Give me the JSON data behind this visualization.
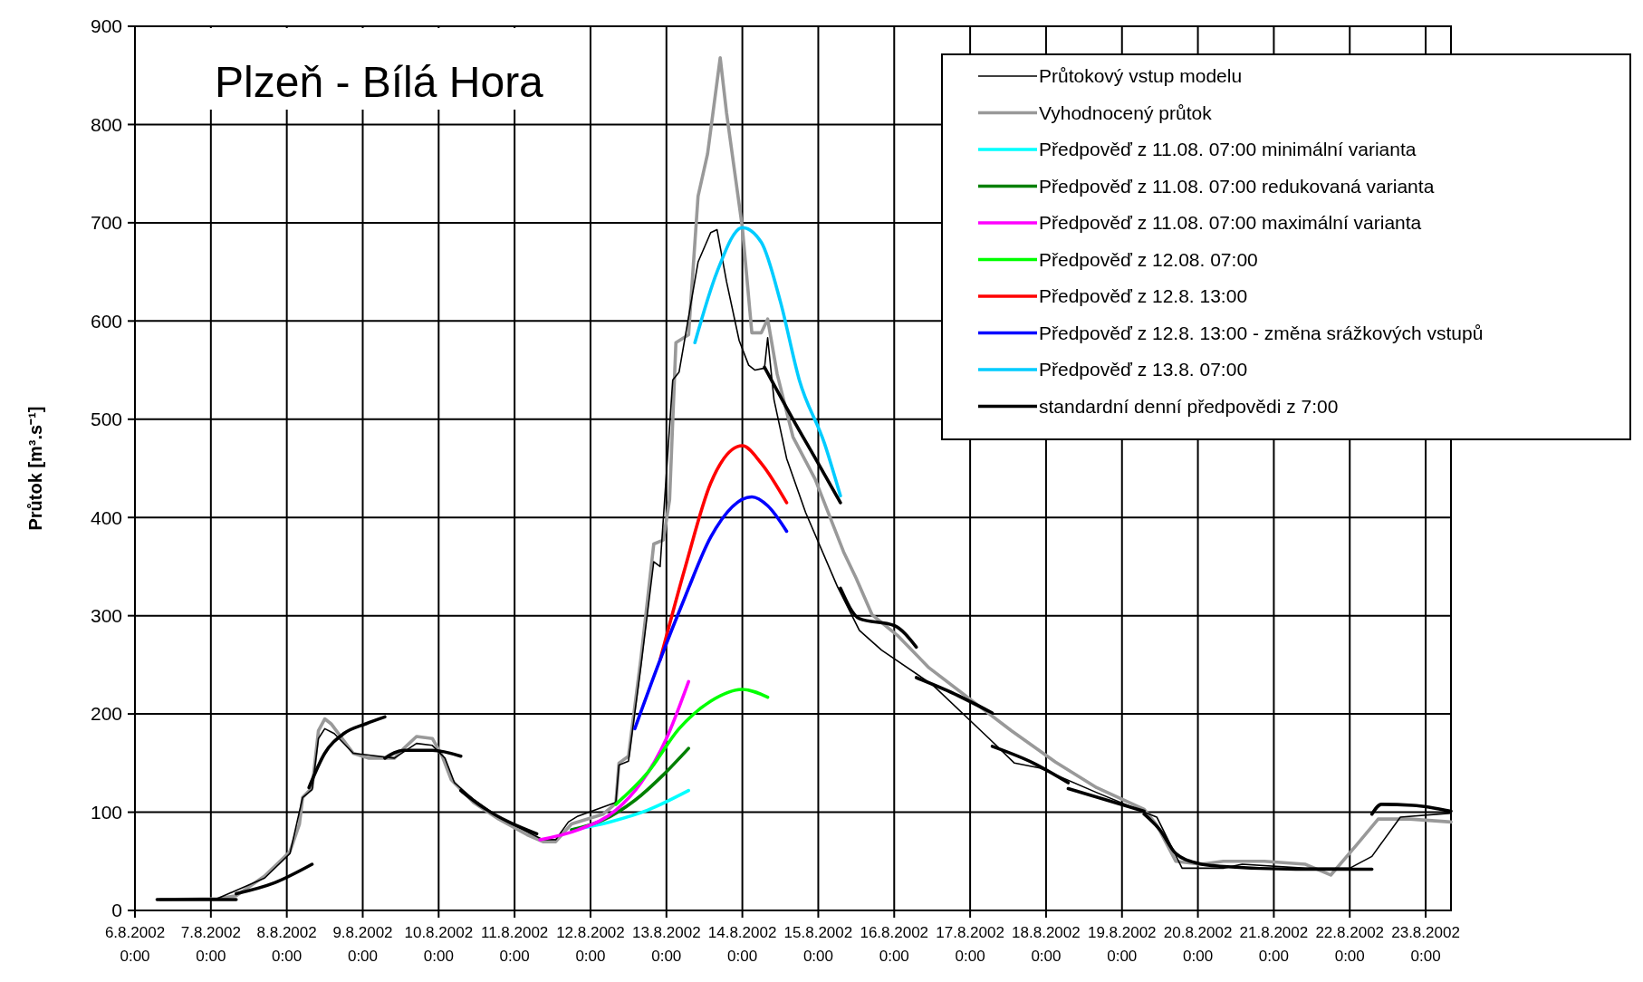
{
  "chart_data": {
    "type": "line",
    "title": "Plzeň - Bílá Hora",
    "ylabel": "Průtok [m³.s⁻¹]",
    "legend": "top right",
    "grid": true,
    "xlim": [
      "2002-08-06T00:00",
      "2002-08-23T08:00"
    ],
    "xticks": [
      {
        "value": "2002-08-06T00:00",
        "label": "6.8.2002 0:00"
      },
      {
        "value": "2002-08-07T00:00",
        "label": "7.8.2002 0:00"
      },
      {
        "value": "2002-08-08T00:00",
        "label": "8.8.2002 0:00"
      },
      {
        "value": "2002-08-09T00:00",
        "label": "9.8.2002 0:00"
      },
      {
        "value": "2002-08-10T00:00",
        "label": "10.8.2002 0:00"
      },
      {
        "value": "2002-08-11T00:00",
        "label": "11.8.2002 0:00"
      },
      {
        "value": "2002-08-12T00:00",
        "label": "12.8.2002 0:00"
      },
      {
        "value": "2002-08-13T00:00",
        "label": "13.8.2002 0:00"
      },
      {
        "value": "2002-08-14T00:00",
        "label": "14.8.2002 0:00"
      },
      {
        "value": "2002-08-15T00:00",
        "label": "15.8.2002 0:00"
      },
      {
        "value": "2002-08-16T00:00",
        "label": "16.8.2002 0:00"
      },
      {
        "value": "2002-08-17T00:00",
        "label": "17.8.2002 0:00"
      },
      {
        "value": "2002-08-18T00:00",
        "label": "18.8.2002 0:00"
      },
      {
        "value": "2002-08-19T00:00",
        "label": "19.8.2002 0:00"
      },
      {
        "value": "2002-08-20T00:00",
        "label": "20.8.2002 0:00"
      },
      {
        "value": "2002-08-21T00:00",
        "label": "21.8.2002 0:00"
      },
      {
        "value": "2002-08-22T00:00",
        "label": "22.8.2002 0:00"
      },
      {
        "value": "2002-08-23T00:00",
        "label": "23.8.2002 0:00"
      }
    ],
    "ylim": [
      0,
      900
    ],
    "yticks": [
      0,
      100,
      200,
      300,
      400,
      500,
      600,
      700,
      800,
      900
    ],
    "series": [
      {
        "name": "Průtokový vstup modelu",
        "color": "#000000",
        "x": [
          "2002-08-06T08:00",
          "2002-08-07T02:00",
          "2002-08-07T17:00",
          "2002-08-08T01:00",
          "2002-08-08T05:00",
          "2002-08-08T08:00",
          "2002-08-08T10:00",
          "2002-08-08T12:00",
          "2002-08-08T15:00",
          "2002-08-08T21:00",
          "2002-08-09T10:00",
          "2002-08-09T17:00",
          "2002-08-09T22:00",
          "2002-08-10T02:00",
          "2002-08-10T05:00",
          "2002-08-10T11:00",
          "2002-08-10T19:00",
          "2002-08-11T04:00",
          "2002-08-11T09:00",
          "2002-08-11T13:00",
          "2002-08-11T17:00",
          "2002-08-11T20:00",
          "2002-08-12T08:00",
          "2002-08-12T09:00",
          "2002-08-12T12:00",
          "2002-08-12T16:00",
          "2002-08-12T20:00",
          "2002-08-12T22:00",
          "2002-08-13T02:00",
          "2002-08-13T04:00",
          "2002-08-13T10:00",
          "2002-08-13T14:00",
          "2002-08-13T16:00",
          "2002-08-13T19:00",
          "2002-08-13T23:00",
          "2002-08-14T02:00",
          "2002-08-14T04:00",
          "2002-08-14T07:00",
          "2002-08-14T08:00",
          "2002-08-14T10:00",
          "2002-08-14T14:00",
          "2002-08-14T20:00",
          "2002-08-15T06:00",
          "2002-08-15T13:00",
          "2002-08-15T20:00",
          "2002-08-16T12:00",
          "2002-08-17T06:00",
          "2002-08-17T14:00",
          "2002-08-17T22:00",
          "2002-08-18T16:00",
          "2002-08-19T07:00",
          "2002-08-19T11:00",
          "2002-08-19T19:00",
          "2002-08-20T08:00",
          "2002-08-20T14:00",
          "2002-08-21T10:00",
          "2002-08-22T00:00",
          "2002-08-22T07:00",
          "2002-08-22T16:00",
          "2002-08-23T08:00"
        ],
        "values": [
          11,
          12,
          33,
          58,
          115,
          123,
          175,
          185,
          180,
          160,
          155,
          170,
          168,
          155,
          130,
          113,
          95,
          80,
          72,
          72,
          90,
          96,
          110,
          148,
          152,
          250,
          355,
          350,
          540,
          548,
          660,
          690,
          693,
          640,
          580,
          555,
          550,
          552,
          583,
          520,
          460,
          405,
          330,
          285,
          265,
          230,
          175,
          150,
          145,
          120,
          100,
          95,
          43,
          43,
          47,
          43,
          43,
          55,
          95,
          99
        ]
      },
      {
        "name": "Vyhodnocený průtok",
        "color": "#999999",
        "x": [
          "2002-08-06T08:00",
          "2002-08-07T02:00",
          "2002-08-07T08:00",
          "2002-08-07T17:00",
          "2002-08-08T01:00",
          "2002-08-08T04:00",
          "2002-08-08T05:00",
          "2002-08-08T08:00",
          "2002-08-08T10:00",
          "2002-08-08T12:00",
          "2002-08-08T14:00",
          "2002-08-08T21:00",
          "2002-08-09T02:00",
          "2002-08-09T10:00",
          "2002-08-09T13:00",
          "2002-08-09T17:00",
          "2002-08-09T22:00",
          "2002-08-10T01:00",
          "2002-08-10T04:00",
          "2002-08-10T11:00",
          "2002-08-10T19:00",
          "2002-08-11T04:00",
          "2002-08-11T09:00",
          "2002-08-11T13:00",
          "2002-08-11T18:00",
          "2002-08-12T04:00",
          "2002-08-12T08:00",
          "2002-08-12T09:00",
          "2002-08-12T12:00",
          "2002-08-12T16:00",
          "2002-08-12T20:00",
          "2002-08-12T23:00",
          "2002-08-13T01:00",
          "2002-08-13T03:00",
          "2002-08-13T07:00",
          "2002-08-13T10:00",
          "2002-08-13T13:00",
          "2002-08-13T17:00",
          "2002-08-13T19:00",
          "2002-08-14T00:00",
          "2002-08-14T03:00",
          "2002-08-14T06:00",
          "2002-08-14T08:00",
          "2002-08-14T11:00",
          "2002-08-14T16:00",
          "2002-08-14T23:00",
          "2002-08-15T08:00",
          "2002-08-15T12:00",
          "2002-08-15T17:00",
          "2002-08-16T01:00",
          "2002-08-16T11:00",
          "2002-08-17T00:00",
          "2002-08-17T13:00",
          "2002-08-18T03:00",
          "2002-08-18T16:00",
          "2002-08-19T07:00",
          "2002-08-19T11:00",
          "2002-08-19T17:00",
          "2002-08-20T01:00",
          "2002-08-20T08:00",
          "2002-08-20T21:00",
          "2002-08-21T10:00",
          "2002-08-21T18:00",
          "2002-08-22T02:00",
          "2002-08-22T09:00",
          "2002-08-22T19:00",
          "2002-08-23T08:00"
        ],
        "values": [
          11,
          12,
          15,
          35,
          60,
          88,
          115,
          125,
          183,
          195,
          190,
          160,
          155,
          155,
          165,
          177,
          175,
          158,
          133,
          110,
          93,
          77,
          70,
          70,
          88,
          98,
          109,
          150,
          157,
          258,
          373,
          377,
          418,
          578,
          586,
          727,
          770,
          868,
          812,
          695,
          588,
          588,
          602,
          546,
          482,
          439,
          365,
          338,
          301,
          280,
          247,
          215,
          183,
          151,
          125,
          103,
          87,
          50,
          47,
          50,
          50,
          47,
          36,
          66,
          93,
          93,
          90
        ]
      },
      {
        "name": "Předpověď z 11.08. 07:00 minimální varianta",
        "color": "#00ffff",
        "x": [
          "2002-08-11T18:00",
          "2002-08-12T06:00",
          "2002-08-12T18:00",
          "2002-08-13T07:00"
        ],
        "values": [
          82,
          90,
          102,
          122
        ]
      },
      {
        "name": "Předpověď z 11.08. 07:00 redukovaná varianta",
        "color": "#008000",
        "x": [
          "2002-08-11T18:00",
          "2002-08-12T04:00",
          "2002-08-12T14:00",
          "2002-08-12T23:00",
          "2002-08-13T07:00"
        ],
        "values": [
          82,
          92,
          112,
          138,
          165
        ]
      },
      {
        "name": "Předpověď z 11.08. 07:00 maximální varianta",
        "color": "#ff00ff",
        "x": [
          "2002-08-11T08:00",
          "2002-08-11T20:00",
          "2002-08-12T08:00",
          "2002-08-12T16:00",
          "2002-08-13T00:00",
          "2002-08-13T07:00"
        ],
        "values": [
          72,
          82,
          102,
          130,
          175,
          233
        ]
      },
      {
        "name": "Předpověď z 12.08. 07:00",
        "color": "#00ff00",
        "x": [
          "2002-08-12T08:00",
          "2002-08-12T18:00",
          "2002-08-13T04:00",
          "2002-08-13T14:00",
          "2002-08-14T00:00",
          "2002-08-14T08:00"
        ],
        "values": [
          108,
          140,
          185,
          213,
          225,
          217
        ]
      },
      {
        "name": "Předpověď z 12.8. 13:00",
        "color": "#ff0000",
        "x": [
          "2002-08-12T22:00",
          "2002-08-13T06:00",
          "2002-08-13T14:00",
          "2002-08-14T00:00",
          "2002-08-14T06:00",
          "2002-08-14T14:00"
        ],
        "values": [
          255,
          350,
          435,
          473,
          455,
          415
        ]
      },
      {
        "name": "Předpověď z 12.8. 13:00 - změna srážkových vstupů",
        "color": "#0000ff",
        "x": [
          "2002-08-12T14:00",
          "2002-08-12T22:00",
          "2002-08-13T06:00",
          "2002-08-13T14:00",
          "2002-08-14T03:00",
          "2002-08-14T08:00",
          "2002-08-14T14:00"
        ],
        "values": [
          185,
          255,
          320,
          380,
          421,
          412,
          386
        ]
      },
      {
        "name": "Předpověď z 13.8. 07:00",
        "color": "#00ccff",
        "x": [
          "2002-08-13T09:00",
          "2002-08-13T16:00",
          "2002-08-14T00:00",
          "2002-08-14T06:00",
          "2002-08-14T12:00",
          "2002-08-14T18:00",
          "2002-08-15T02:00",
          "2002-08-15T07:00"
        ],
        "values": [
          578,
          650,
          695,
          680,
          620,
          540,
          475,
          422
        ]
      },
      {
        "name": "standardní denní předpovědi z 7:00",
        "color": "#000000",
        "x": [
          "2002-08-06T07:00",
          "2002-08-07T08:00"
        ],
        "values": [
          11,
          11
        ]
      },
      {
        "color": "#000000",
        "x": [
          "2002-08-07T08:00",
          "2002-08-07T20:00",
          "2002-08-08T08:00"
        ],
        "values": [
          17,
          28,
          47
        ]
      },
      {
        "color": "#000000",
        "x": [
          "2002-08-08T07:00",
          "2002-08-08T12:00",
          "2002-08-08T18:00",
          "2002-08-09T01:00",
          "2002-08-09T07:00"
        ],
        "values": [
          125,
          160,
          180,
          190,
          197
        ]
      },
      {
        "color": "#000000",
        "x": [
          "2002-08-09T07:00",
          "2002-08-09T13:00",
          "2002-08-09T22:00",
          "2002-08-10T07:00"
        ],
        "values": [
          155,
          163,
          163,
          157
        ]
      },
      {
        "color": "#000000",
        "x": [
          "2002-08-10T07:00",
          "2002-08-10T14:00",
          "2002-08-11T07:00"
        ],
        "values": [
          122,
          105,
          78
        ]
      },
      {
        "color": "#000000",
        "x": [
          "2002-08-14T07:00",
          "2002-08-14T16:00",
          "2002-08-15T00:00",
          "2002-08-15T07:00"
        ],
        "values": [
          553,
          500,
          455,
          415
        ]
      },
      {
        "color": "#000000",
        "x": [
          "2002-08-15T07:00",
          "2002-08-15T13:00",
          "2002-08-16T00:00",
          "2002-08-16T07:00"
        ],
        "values": [
          328,
          297,
          290,
          268
        ]
      },
      {
        "color": "#000000",
        "x": [
          "2002-08-16T07:00",
          "2002-08-16T18:00",
          "2002-08-17T07:00"
        ],
        "values": [
          237,
          222,
          201
        ]
      },
      {
        "color": "#000000",
        "x": [
          "2002-08-17T07:00",
          "2002-08-17T20:00",
          "2002-08-18T07:00"
        ],
        "values": [
          167,
          150,
          130
        ]
      },
      {
        "color": "#000000",
        "x": [
          "2002-08-18T07:00",
          "2002-08-19T07:00"
        ],
        "values": [
          124,
          101
        ]
      },
      {
        "color": "#000000",
        "x": [
          "2002-08-19T07:00",
          "2002-08-19T12:00",
          "2002-08-19T17:00",
          "2002-08-20T00:00",
          "2002-08-20T07:00",
          "2002-08-21T07:00",
          "2002-08-22T07:00"
        ],
        "values": [
          98,
          82,
          58,
          48,
          45,
          42,
          42
        ]
      },
      {
        "color": "#000000",
        "x": [
          "2002-08-22T07:00",
          "2002-08-22T10:00",
          "2002-08-22T20:00",
          "2002-08-23T08:00"
        ],
        "values": [
          98,
          108,
          107,
          101
        ]
      }
    ]
  }
}
